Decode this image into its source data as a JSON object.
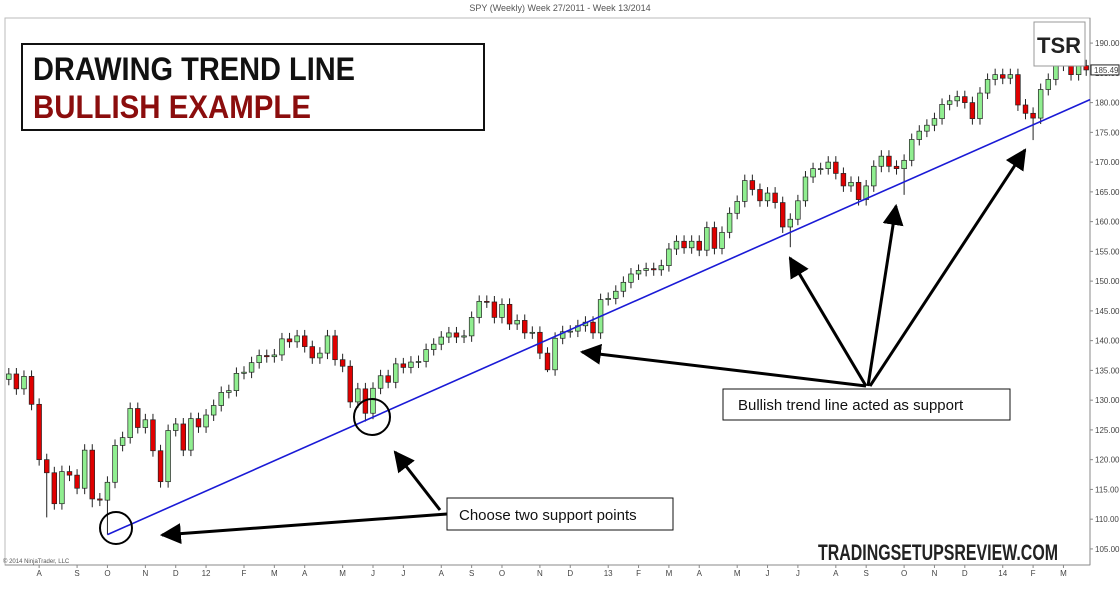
{
  "chart_data": {
    "type": "candlestick",
    "title": "SPY (Weekly)  Week 27/2011 - Week 13/2014",
    "open": [
      133.5,
      134.4,
      131.9,
      134.0,
      129.3,
      120.0,
      117.8,
      112.6,
      118.0,
      117.4,
      115.2,
      121.6,
      113.4,
      113.2,
      116.2,
      122.4,
      123.7,
      128.6,
      125.4,
      126.7,
      121.5,
      116.3,
      124.9,
      126.0,
      121.6,
      126.9,
      125.5,
      127.5,
      129.1,
      131.3,
      131.6,
      134.5,
      134.7,
      136.3,
      137.5,
      137.3,
      137.6,
      140.3,
      139.8,
      140.8,
      139.0,
      137.1,
      137.9,
      140.8,
      136.8,
      135.7,
      129.7,
      131.9,
      127.8,
      132.0,
      134.1,
      133.0,
      136.1,
      135.5,
      136.4,
      136.5,
      138.5,
      139.4,
      140.6,
      141.3,
      140.6,
      140.8,
      143.9,
      146.6,
      146.5,
      143.9,
      146.1,
      142.8,
      143.4,
      141.3,
      141.4,
      137.9,
      135.1,
      140.4,
      141.5,
      141.6,
      142.5,
      143.1,
      141.3,
      146.9,
      147.1,
      148.3,
      149.8,
      151.2,
      151.8,
      152.1,
      151.9,
      152.6,
      155.4,
      156.7,
      155.6,
      156.7,
      155.2,
      159.0,
      155.5,
      158.2,
      161.4,
      163.4,
      166.9,
      165.4,
      163.5,
      164.8,
      163.2,
      159.1,
      160.4,
      163.5,
      167.5,
      168.9,
      168.9,
      170.0,
      168.1,
      166.0,
      166.6,
      163.7,
      166.0,
      169.3,
      171.0,
      169.3,
      168.9,
      170.3,
      173.8,
      175.2,
      176.2,
      177.3,
      179.7,
      180.3,
      181.0,
      180.0,
      177.3,
      181.6,
      183.9,
      184.7,
      184.1,
      184.7,
      179.6,
      178.2,
      177.4,
      182.2,
      183.9,
      186.3,
      187.7,
      184.7,
      186.2
    ],
    "high": [
      135.4,
      135.4,
      135.0,
      135.0,
      130.3,
      121.0,
      118.8,
      119.0,
      119.0,
      118.4,
      122.6,
      122.6,
      114.4,
      117.2,
      123.4,
      124.7,
      129.6,
      129.6,
      127.7,
      127.7,
      122.5,
      125.9,
      127.0,
      127.0,
      127.9,
      127.9,
      128.5,
      130.1,
      132.3,
      132.6,
      135.5,
      135.7,
      137.3,
      138.5,
      138.5,
      138.6,
      141.3,
      141.3,
      141.8,
      141.8,
      140.0,
      138.9,
      141.8,
      141.8,
      137.8,
      136.7,
      132.9,
      132.9,
      133.0,
      135.1,
      135.1,
      137.1,
      137.1,
      137.4,
      137.5,
      139.5,
      140.4,
      141.6,
      142.3,
      142.3,
      141.8,
      144.9,
      147.6,
      147.6,
      147.5,
      147.1,
      147.1,
      144.4,
      144.4,
      142.4,
      142.4,
      138.9,
      141.4,
      142.5,
      142.6,
      143.5,
      144.1,
      144.1,
      147.9,
      148.1,
      149.3,
      150.8,
      152.2,
      152.8,
      153.1,
      153.1,
      153.6,
      156.4,
      157.7,
      157.7,
      157.7,
      157.7,
      160.0,
      160.0,
      159.2,
      162.4,
      164.4,
      167.9,
      167.9,
      166.4,
      165.8,
      165.8,
      164.2,
      161.4,
      164.5,
      168.5,
      169.9,
      169.9,
      171.0,
      171.0,
      169.1,
      167.6,
      167.6,
      167.0,
      170.3,
      172.0,
      172.0,
      170.3,
      171.3,
      174.8,
      176.2,
      177.2,
      178.3,
      180.7,
      181.3,
      182.0,
      182.0,
      181.0,
      182.6,
      184.9,
      185.7,
      185.7,
      185.7,
      185.7,
      180.6,
      179.2,
      183.2,
      184.9,
      187.3,
      188.7,
      188.7,
      187.2,
      187.2
    ],
    "low": [
      132.5,
      130.9,
      130.9,
      128.3,
      119.0,
      110.3,
      111.6,
      111.6,
      116.4,
      114.2,
      114.2,
      112.0,
      112.2,
      107.4,
      115.2,
      121.4,
      122.7,
      124.4,
      124.4,
      120.5,
      115.3,
      115.3,
      123.9,
      120.6,
      120.6,
      124.5,
      124.5,
      126.5,
      128.1,
      130.3,
      130.6,
      133.5,
      133.7,
      135.3,
      136.3,
      136.3,
      136.6,
      138.8,
      138.8,
      138.0,
      136.1,
      136.1,
      136.9,
      135.8,
      134.7,
      128.7,
      128.7,
      126.4,
      126.8,
      131.0,
      132.0,
      132.0,
      134.5,
      134.5,
      135.4,
      135.5,
      137.5,
      138.4,
      139.6,
      139.6,
      139.6,
      139.8,
      142.9,
      145.5,
      142.9,
      142.9,
      141.8,
      141.8,
      140.3,
      140.3,
      136.9,
      134.7,
      134.1,
      139.4,
      140.5,
      140.6,
      141.5,
      140.3,
      140.3,
      145.9,
      146.1,
      147.3,
      148.8,
      150.2,
      150.8,
      150.9,
      150.9,
      151.6,
      154.4,
      154.6,
      154.6,
      154.2,
      154.2,
      154.5,
      154.5,
      157.2,
      160.4,
      162.4,
      164.4,
      162.5,
      162.5,
      162.2,
      158.1,
      155.7,
      159.4,
      162.5,
      166.5,
      167.9,
      167.9,
      167.1,
      165.0,
      165.0,
      162.7,
      162.7,
      165.0,
      168.3,
      168.3,
      167.9,
      164.5,
      169.3,
      172.8,
      174.2,
      175.2,
      176.3,
      178.7,
      179.3,
      179.0,
      176.3,
      176.3,
      180.6,
      182.9,
      183.1,
      183.1,
      178.6,
      177.2,
      173.7,
      176.4,
      181.2,
      182.9,
      185.3,
      183.7,
      183.7,
      184.5
    ],
    "close": [
      134.4,
      131.9,
      134.0,
      129.3,
      120.0,
      117.8,
      112.6,
      118.0,
      117.4,
      115.2,
      121.6,
      113.4,
      113.2,
      116.2,
      122.4,
      123.7,
      128.6,
      125.4,
      126.7,
      121.5,
      116.3,
      124.9,
      126.0,
      121.6,
      126.9,
      125.5,
      127.5,
      129.1,
      131.3,
      131.6,
      134.5,
      134.7,
      136.3,
      137.5,
      137.3,
      137.6,
      140.3,
      139.8,
      140.8,
      139.0,
      137.1,
      137.9,
      140.8,
      136.8,
      135.7,
      129.7,
      131.9,
      127.8,
      132.0,
      134.1,
      133.0,
      136.1,
      135.5,
      136.4,
      136.5,
      138.5,
      139.4,
      140.6,
      141.3,
      140.6,
      140.8,
      143.9,
      146.6,
      146.5,
      143.9,
      146.1,
      142.8,
      143.4,
      141.3,
      141.4,
      137.9,
      135.1,
      140.4,
      141.5,
      141.6,
      142.5,
      143.1,
      141.3,
      146.9,
      147.1,
      148.3,
      149.8,
      151.2,
      151.8,
      152.1,
      151.9,
      152.6,
      155.4,
      156.7,
      155.6,
      156.7,
      155.2,
      159.0,
      155.5,
      158.2,
      161.4,
      163.4,
      166.9,
      165.4,
      163.5,
      164.8,
      163.2,
      159.1,
      160.4,
      163.5,
      167.5,
      168.9,
      168.9,
      170.0,
      168.1,
      166.0,
      166.6,
      163.7,
      166.0,
      169.3,
      171.0,
      169.3,
      168.9,
      170.3,
      173.8,
      175.2,
      176.2,
      177.3,
      179.7,
      180.3,
      181.0,
      180.0,
      177.3,
      181.6,
      183.9,
      184.7,
      184.1,
      184.7,
      179.6,
      178.2,
      177.4,
      182.2,
      183.9,
      186.3,
      187.7,
      184.7,
      186.2,
      185.49
    ],
    "up_color": "#90ee90",
    "down_color": "#e00000",
    "xlim": [
      -0.5,
      142.5
    ],
    "xticks": [
      {
        "value": 4,
        "label": "A"
      },
      {
        "value": 9,
        "label": "S"
      },
      {
        "value": 13,
        "label": "O"
      },
      {
        "value": 18,
        "label": "N"
      },
      {
        "value": 22,
        "label": "D"
      },
      {
        "value": 26,
        "label": "12"
      },
      {
        "value": 31,
        "label": "F"
      },
      {
        "value": 35,
        "label": "M"
      },
      {
        "value": 39,
        "label": "A"
      },
      {
        "value": 44,
        "label": "M"
      },
      {
        "value": 48,
        "label": "J"
      },
      {
        "value": 52,
        "label": "J"
      },
      {
        "value": 57,
        "label": "A"
      },
      {
        "value": 61,
        "label": "S"
      },
      {
        "value": 65,
        "label": "O"
      },
      {
        "value": 70,
        "label": "N"
      },
      {
        "value": 74,
        "label": "D"
      },
      {
        "value": 79,
        "label": "13"
      },
      {
        "value": 83,
        "label": "F"
      },
      {
        "value": 87,
        "label": "M"
      },
      {
        "value": 91,
        "label": "A"
      },
      {
        "value": 96,
        "label": "M"
      },
      {
        "value": 100,
        "label": "J"
      },
      {
        "value": 104,
        "label": "J"
      },
      {
        "value": 109,
        "label": "A"
      },
      {
        "value": 113,
        "label": "S"
      },
      {
        "value": 118,
        "label": "O"
      },
      {
        "value": 122,
        "label": "N"
      },
      {
        "value": 126,
        "label": "D"
      },
      {
        "value": 131,
        "label": "14"
      },
      {
        "value": 135,
        "label": "F"
      },
      {
        "value": 139,
        "label": "M"
      }
    ],
    "ylim": [
      102.3,
      196.4
    ],
    "yticks": [
      {
        "value": 105,
        "label": "105.00"
      },
      {
        "value": 110,
        "label": "110.00"
      },
      {
        "value": 115,
        "label": "115.00"
      },
      {
        "value": 120,
        "label": "120.00"
      },
      {
        "value": 125,
        "label": "125.00"
      },
      {
        "value": 130,
        "label": "130.00"
      },
      {
        "value": 135,
        "label": "135.00"
      },
      {
        "value": 140,
        "label": "140.00"
      },
      {
        "value": 145,
        "label": "145.00"
      },
      {
        "value": 150,
        "label": "150.00"
      },
      {
        "value": 155,
        "label": "155.00"
      },
      {
        "value": 160,
        "label": "160.00"
      },
      {
        "value": 165,
        "label": "165.00"
      },
      {
        "value": 170,
        "label": "170.00"
      },
      {
        "value": 175,
        "label": "175.00"
      },
      {
        "value": 180,
        "label": "180.00"
      },
      {
        "value": 185,
        "label": "185.00"
      },
      {
        "value": 190,
        "label": "190.00"
      }
    ],
    "last_price": 185.49,
    "trendline": {
      "x": [
        13,
        142.5
      ],
      "y": [
        107.4,
        180.5
      ],
      "color": "#1a1ad6"
    },
    "headline": [
      "DRAWING TREND LINE",
      "BULLISH EXAMPLE"
    ],
    "logo": "TSR",
    "callouts": [
      "Choose two support points",
      "Bullish trend line acted as support"
    ],
    "watermark": "TRADINGSETUPSREVIEW.COM",
    "copyright": "© 2014 NinjaTrader, LLC"
  }
}
